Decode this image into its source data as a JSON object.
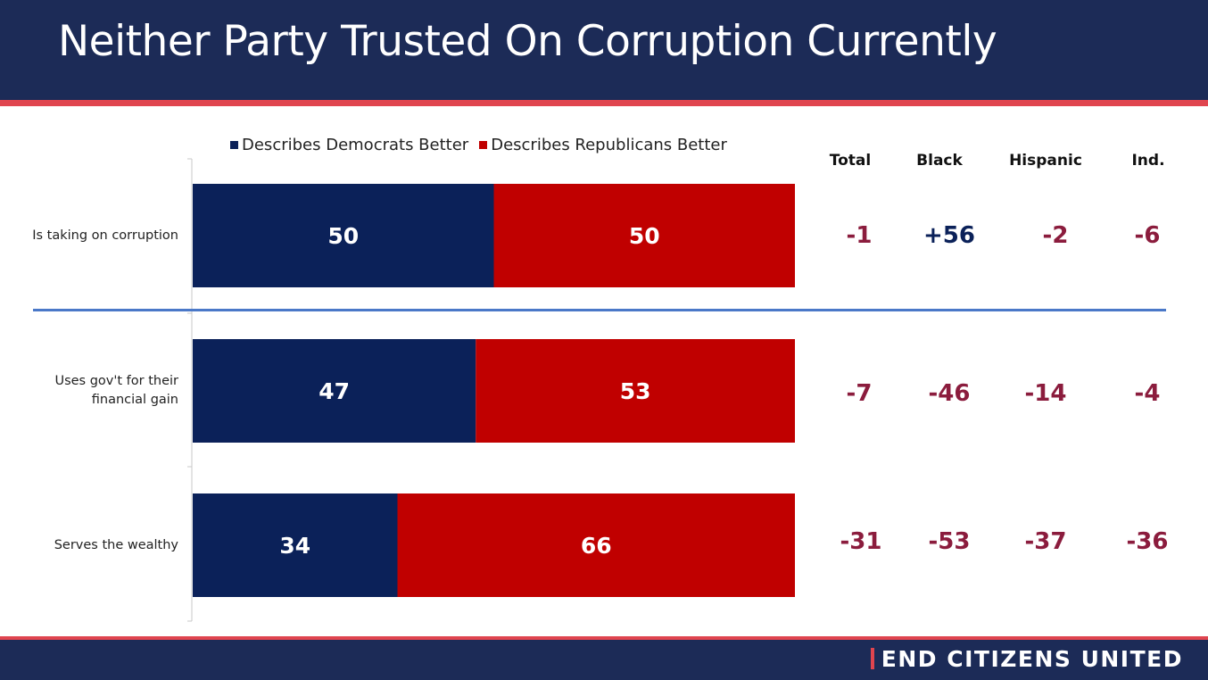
{
  "title": "Neither Party Trusted On Corruption Currently",
  "brand": "END CITIZENS UNITED",
  "legend": {
    "dem": "Describes Democrats Better",
    "rep": "Describes Republicans Better"
  },
  "columns": [
    "Total",
    "Black",
    "Hispanic",
    "Ind."
  ],
  "rows": [
    {
      "label": "Is taking on corruption",
      "diffs": [
        "-1",
        "+56",
        "-2",
        "-6"
      ]
    },
    {
      "label": "Uses gov't for their financial gain",
      "diffs": [
        "-7",
        "-46",
        "-14",
        "-4"
      ]
    },
    {
      "label": "Serves the wealthy",
      "diffs": [
        "-31",
        "-53",
        "-37",
        "-36"
      ]
    }
  ],
  "colors": {
    "header": "#1c2b57",
    "accent": "#e0454f",
    "dem": "#0b2159",
    "rep": "#c00000",
    "negative": "#8b1c3d",
    "positive": "#0b2159",
    "divider": "#4a78c8"
  },
  "chart_data": {
    "type": "bar",
    "orientation": "horizontal",
    "stacked": true,
    "categories": [
      "Is taking on corruption",
      "Uses gov't for their financial gain",
      "Serves the wealthy"
    ],
    "series": [
      {
        "name": "Describes Democrats Better",
        "values": [
          50,
          47,
          34
        ]
      },
      {
        "name": "Describes Republicans Better",
        "values": [
          50,
          53,
          66
        ]
      }
    ],
    "xlim": [
      0,
      100
    ],
    "legend_position": "top",
    "grid": false
  }
}
